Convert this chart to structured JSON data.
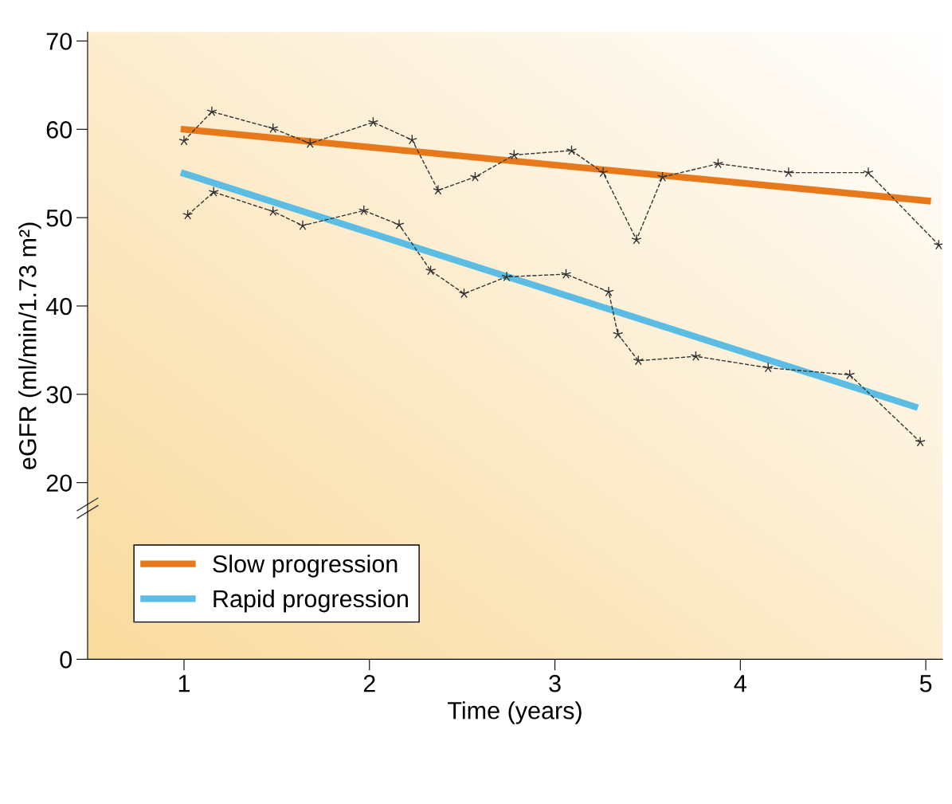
{
  "chart_data": {
    "type": "line",
    "xlabel": "Time (years)",
    "ylabel": "eGFR (ml/min/1.73 m²)",
    "xlim": [
      0.48,
      5.09
    ],
    "xticks": [
      1,
      2,
      3,
      4,
      5
    ],
    "ylim": [
      0,
      71
    ],
    "yticks": [
      0,
      20,
      30,
      40,
      50,
      60,
      70
    ],
    "grid": false,
    "legend": "bottom left",
    "series": [
      {
        "color": "#333333",
        "marker": "star",
        "line_style": "dashed",
        "x": [
          1.0,
          1.15,
          1.48,
          1.68,
          2.02,
          2.23,
          2.37,
          2.57,
          2.78,
          3.09,
          3.26,
          3.44,
          3.58,
          3.88,
          4.26,
          4.69,
          5.07
        ],
        "values": [
          58.7,
          62.0,
          60.1,
          58.4,
          60.8,
          58.8,
          53.1,
          54.6,
          57.1,
          57.6,
          55.1,
          47.5,
          54.6,
          56.1,
          55.1,
          55.1,
          46.9
        ]
      },
      {
        "color": "#333333",
        "marker": "star",
        "line_style": "dashed",
        "x": [
          1.02,
          1.16,
          1.48,
          1.64,
          1.97,
          2.16,
          2.33,
          2.51,
          2.74,
          3.06,
          3.29,
          3.34,
          3.45,
          3.76,
          4.15,
          4.59,
          4.97
        ],
        "values": [
          50.3,
          52.9,
          50.7,
          49.1,
          50.8,
          49.2,
          44.0,
          41.4,
          43.3,
          43.6,
          41.6,
          36.8,
          33.8,
          34.3,
          33.0,
          32.2,
          24.6
        ]
      },
      {
        "name": "Slow progression",
        "color": "#e8791b",
        "marker": "none",
        "line_style": "solid",
        "x": [
          1.0,
          5.01
        ],
        "values": [
          60.0,
          51.9
        ]
      },
      {
        "name": "Rapid progression",
        "color": "#5bbde4",
        "marker": "none",
        "line_style": "solid",
        "x": [
          1.0,
          4.94
        ],
        "values": [
          55.0,
          28.6
        ]
      }
    ]
  }
}
